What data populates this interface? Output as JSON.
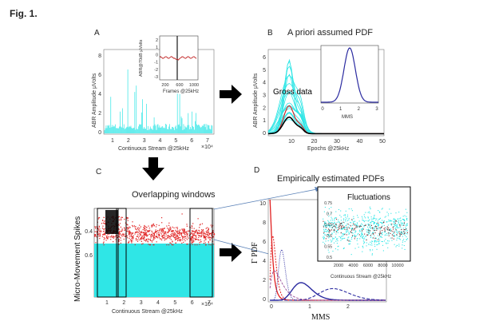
{
  "figure_label": "Fig. 1.",
  "panels": {
    "A": {
      "letter": "A",
      "ylabel": "ABR Amplitude μVolts",
      "xlabel": "Continuous Stream @25kHz",
      "xexp": "×10⁴",
      "xticks": [
        "1",
        "2",
        "3",
        "4",
        "5",
        "6",
        "7"
      ],
      "yticks": [
        "0",
        "2",
        "4",
        "6",
        "8"
      ],
      "inset": {
        "ylabel": "ABR@70dB μVolts",
        "xlabel": "Frames @25kHz",
        "xticks": [
          "200",
          "600",
          "1000"
        ],
        "yticks": [
          "2",
          "1",
          "0",
          "-1",
          "-2",
          "-3"
        ]
      }
    },
    "B": {
      "letter": "B",
      "title": "A priori assumed PDF",
      "ylabel": "ABR Amplitude μVolts",
      "xlabel": "Epochs @25kHz",
      "annotation": "Gross data",
      "xticks": [
        "10",
        "20",
        "30",
        "40",
        "50"
      ],
      "yticks": [
        "0",
        "1",
        "2",
        "3",
        "4",
        "5",
        "6"
      ],
      "inset": {
        "xlabel": "MMS",
        "xticks": [
          "0",
          "1",
          "2",
          "3"
        ]
      }
    },
    "C": {
      "letter": "C",
      "title": "Overlapping windows",
      "ylabel": "Micro-Movement Spikes",
      "xlabel": "Continuous Stream @25kHz",
      "xexp": "×10⁴",
      "xticks": [
        "1",
        "2",
        "3",
        "4",
        "5",
        "6",
        "7"
      ],
      "yticks": [
        "0.4",
        "0.6"
      ]
    },
    "D": {
      "letter": "D",
      "title": "Empirically estimated PDFs",
      "ylabel": "Γ PDF",
      "xlabel": "MMS",
      "xticks": [
        "0",
        "1",
        "2"
      ],
      "yticks": [
        "0",
        "2",
        "4",
        "6",
        "8",
        "10"
      ],
      "inset": {
        "title": "Fluctuations",
        "xlabel": "Continuous Stream @25kHz",
        "xticks": [
          "2000",
          "4000",
          "6000",
          "8000",
          "10000"
        ],
        "yticks": [
          "0.5",
          "0.55",
          "0.6",
          "0.65",
          "0.7",
          "0.75"
        ]
      }
    }
  },
  "colors": {
    "cyan": "#2fe6e6",
    "red": "#e02020",
    "navy": "#2a2aa0",
    "black": "#000000"
  }
}
